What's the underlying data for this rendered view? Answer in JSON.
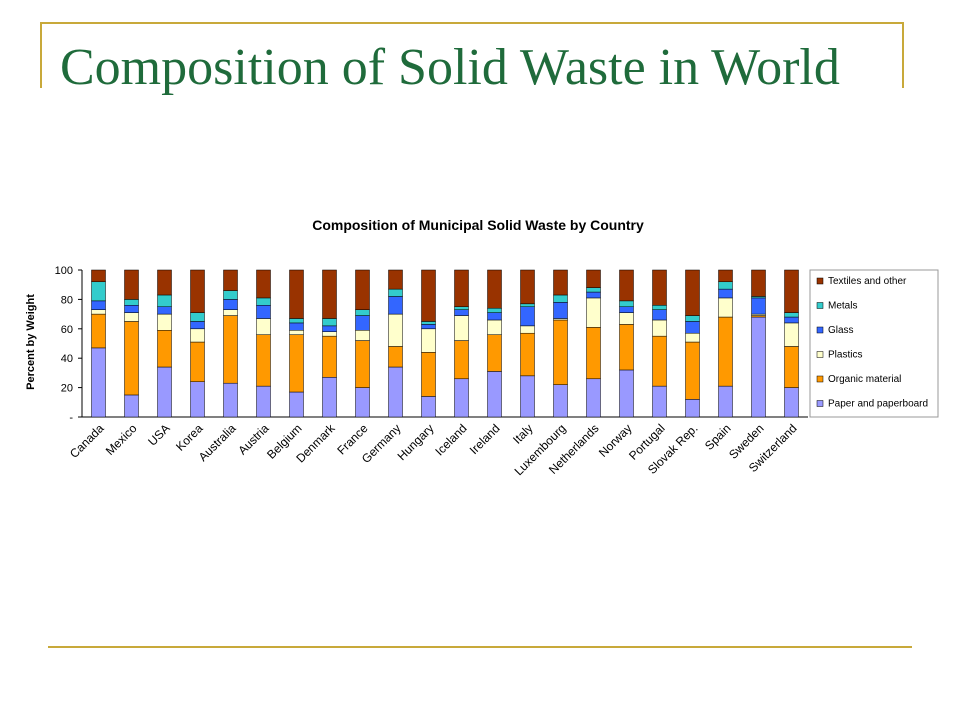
{
  "slide": {
    "title": "Composition of Solid Waste in World"
  },
  "colors": {
    "frame": "#c8a93a",
    "title": "#1f6b3b"
  },
  "chart_data": {
    "type": "bar",
    "stacked": true,
    "title": "Composition of Municipal Solid Waste by Country",
    "xlabel": "",
    "ylabel": "Percent by Weight",
    "ylim": [
      0,
      100
    ],
    "yticks": [
      "-",
      "20",
      "40",
      "60",
      "80",
      "100"
    ],
    "legend_position": "right",
    "categories": [
      "Canada",
      "Mexico",
      "USA",
      "Korea",
      "Australia",
      "Austria",
      "Belgium",
      "Denmark",
      "France",
      "Germany",
      "Hungary",
      "Iceland",
      "Ireland",
      "Italy",
      "Luxembourg",
      "Netherlands",
      "Norway",
      "Portugal",
      "Slovak Rep.",
      "Spain",
      "Sweden",
      "Switzerland"
    ],
    "series": [
      {
        "name": "Paper and paperboard",
        "color": "#9999ff",
        "values": [
          47,
          15,
          34,
          24,
          23,
          21,
          17,
          27,
          20,
          34,
          14,
          26,
          31,
          28,
          22,
          26,
          32,
          21,
          12,
          21,
          68,
          20
        ]
      },
      {
        "name": "Organic material",
        "color": "#ff9900",
        "values": [
          23,
          50,
          25,
          27,
          46,
          35,
          39,
          28,
          32,
          14,
          30,
          26,
          25,
          29,
          44,
          35,
          31,
          34,
          39,
          47,
          1,
          28
        ]
      },
      {
        "name": "Plastics",
        "color": "#ffffcc",
        "values": [
          3,
          6,
          11,
          9,
          4,
          11,
          3,
          3,
          7,
          22,
          16,
          17,
          10,
          5,
          1,
          20,
          8,
          11,
          6,
          13,
          1,
          16
        ]
      },
      {
        "name": "Glass",
        "color": "#3366ff",
        "values": [
          6,
          5,
          5,
          5,
          7,
          9,
          5,
          4,
          10,
          12,
          3,
          4,
          5,
          13,
          11,
          4,
          4,
          7,
          8,
          6,
          11,
          4
        ]
      },
      {
        "name": "Metals",
        "color": "#33cccc",
        "values": [
          13,
          4,
          8,
          6,
          6,
          5,
          3,
          5,
          4,
          5,
          2,
          2,
          3,
          2,
          5,
          3,
          4,
          3,
          4,
          5,
          1,
          3
        ]
      },
      {
        "name": "Textiles and other",
        "color": "#993300",
        "values": [
          8,
          20,
          17,
          29,
          14,
          19,
          33,
          33,
          27,
          13,
          35,
          25,
          26,
          23,
          17,
          12,
          21,
          24,
          31,
          8,
          18,
          29
        ]
      }
    ]
  }
}
